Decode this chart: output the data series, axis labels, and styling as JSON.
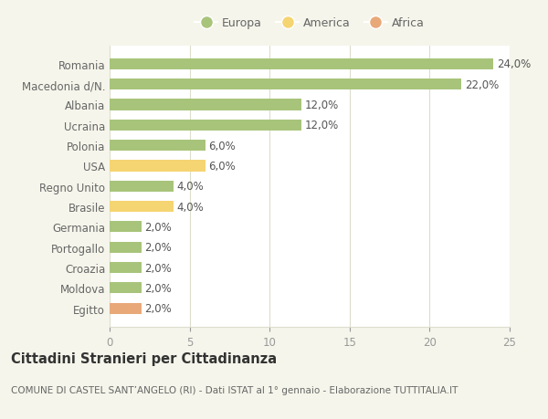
{
  "countries": [
    "Romania",
    "Macedonia d/N.",
    "Albania",
    "Ucraina",
    "Polonia",
    "USA",
    "Regno Unito",
    "Brasile",
    "Germania",
    "Portogallo",
    "Croazia",
    "Moldova",
    "Egitto"
  ],
  "values": [
    24.0,
    22.0,
    12.0,
    12.0,
    6.0,
    6.0,
    4.0,
    4.0,
    2.0,
    2.0,
    2.0,
    2.0,
    2.0
  ],
  "categories": [
    "Europa",
    "America",
    "Africa"
  ],
  "continent": [
    "Europa",
    "Europa",
    "Europa",
    "Europa",
    "Europa",
    "America",
    "Europa",
    "America",
    "Europa",
    "Europa",
    "Europa",
    "Europa",
    "Africa"
  ],
  "colors": {
    "Europa": "#a8c47a",
    "America": "#f5d472",
    "Africa": "#e8a878"
  },
  "title": "Cittadini Stranieri per Cittadinanza",
  "subtitle": "COMUNE DI CASTEL SANT’ANGELO (RI) - Dati ISTAT al 1° gennaio - Elaborazione TUTTITALIA.IT",
  "xlim": [
    0,
    25
  ],
  "xticks": [
    0,
    5,
    10,
    15,
    20,
    25
  ],
  "bg_color": "#f5f5eb",
  "plot_bg_color": "#ffffff",
  "grid_color": "#ddddcc",
  "bar_height": 0.55,
  "label_fontsize": 8.5,
  "title_fontsize": 10.5,
  "subtitle_fontsize": 7.5,
  "tick_fontsize": 8.5,
  "legend_fontsize": 9
}
